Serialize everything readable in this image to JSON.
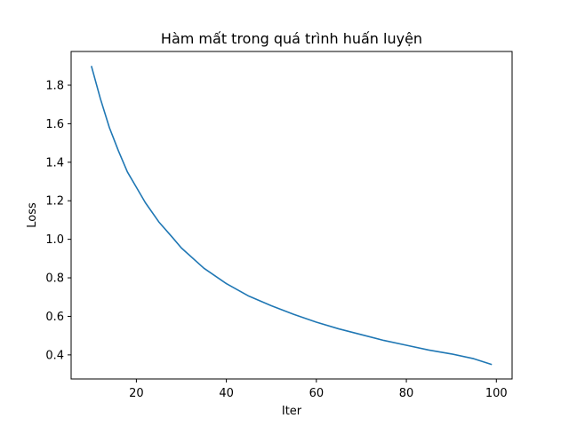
{
  "chart_data": {
    "type": "line",
    "title": "Hàm mất trong quá trình huấn luyện",
    "xlabel": "Iter",
    "ylabel": "Loss",
    "xlim": [
      5.5,
      103.5
    ],
    "ylim": [
      0.275,
      1.975
    ],
    "xticks": [
      20,
      40,
      60,
      80,
      100
    ],
    "yticks": [
      0.4,
      0.6,
      0.8,
      1.0,
      1.2,
      1.4,
      1.6,
      1.8
    ],
    "xtick_labels": [
      "20",
      "40",
      "60",
      "80",
      "100"
    ],
    "ytick_labels": [
      "0.4",
      "0.6",
      "0.8",
      "1.0",
      "1.2",
      "1.4",
      "1.6",
      "1.8"
    ],
    "grid": false,
    "color": "#1f77b4",
    "series": [
      {
        "x": [
          10,
          12,
          14,
          16,
          18,
          20,
          22,
          25,
          28,
          30,
          35,
          40,
          45,
          50,
          55,
          60,
          65,
          70,
          75,
          80,
          85,
          90,
          95,
          99
        ],
        "values": [
          1.9,
          1.73,
          1.58,
          1.46,
          1.35,
          1.27,
          1.19,
          1.09,
          1.01,
          0.955,
          0.85,
          0.77,
          0.705,
          0.655,
          0.61,
          0.57,
          0.535,
          0.505,
          0.475,
          0.45,
          0.425,
          0.405,
          0.38,
          0.35
        ]
      }
    ]
  }
}
